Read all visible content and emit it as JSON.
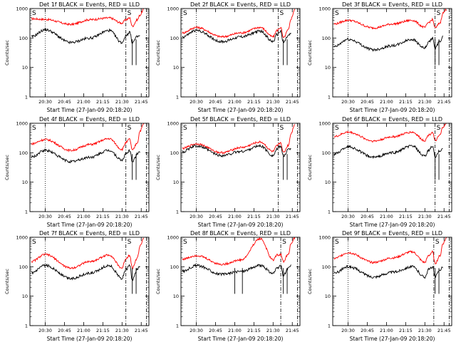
{
  "chart_data": {
    "type": "line",
    "yscale": "log",
    "ylim": [
      1,
      1000
    ],
    "xlim_minutes": [
      "20:18",
      "21:51"
    ],
    "yticks": [
      "1",
      "10",
      "100",
      "1000"
    ],
    "xticks": [
      "20:30",
      "20:45",
      "21:00",
      "21:15",
      "21:30",
      "21:45"
    ],
    "ylabel": "Counts/sec",
    "xlabel": "Start Time (27-Jan-09 20:18:20)",
    "markers": [
      "S",
      "S"
    ],
    "colors": {
      "events": "#000000",
      "lld": "#ff0000"
    },
    "panels": [
      {
        "title": "Det 1f BLACK = Events, RED = LLD",
        "lld": {
          "x": [
            "20:19",
            "20:30",
            "20:50",
            "21:05",
            "21:20",
            "21:30",
            "21:33",
            "21:36",
            "21:38",
            "21:42",
            "21:44",
            "21:47"
          ],
          "y": [
            450,
            430,
            290,
            420,
            480,
            320,
            420,
            480,
            250,
            420,
            600,
            950
          ]
        },
        "events": {
          "x": [
            "20:19",
            "20:30",
            "20:50",
            "21:05",
            "21:20",
            "21:30",
            "21:33",
            "21:36",
            "21:38",
            "21:42",
            "21:44"
          ],
          "y": [
            110,
            190,
            70,
            100,
            180,
            70,
            120,
            160,
            70,
            110,
            120
          ]
        },
        "dips": [
          "21:38",
          "21:41"
        ],
        "dotted": "20:30",
        "dashdot": [
          "21:33",
          "21:49"
        ]
      },
      {
        "title": "Det 2f BLACK = Events, RED = LLD",
        "lld": {
          "x": [
            "20:19",
            "20:30",
            "20:50",
            "21:05",
            "21:20",
            "21:30",
            "21:33",
            "21:36",
            "21:38",
            "21:42",
            "21:44",
            "21:47"
          ],
          "y": [
            150,
            230,
            110,
            150,
            230,
            110,
            180,
            230,
            100,
            190,
            450,
            950
          ]
        },
        "events": {
          "x": [
            "20:19",
            "20:30",
            "20:50",
            "21:05",
            "21:20",
            "21:30",
            "21:33",
            "21:36",
            "21:38",
            "21:42",
            "21:44"
          ],
          "y": [
            110,
            180,
            75,
            110,
            170,
            75,
            130,
            170,
            70,
            120,
            140
          ]
        },
        "dips": [
          "21:38",
          "21:41"
        ],
        "dotted": "20:30",
        "dashdot": [
          "21:34",
          "21:49"
        ]
      },
      {
        "title": "Det 3f BLACK = Events, RED = LLD",
        "lld": {
          "x": [
            "20:19",
            "20:30",
            "20:50",
            "21:05",
            "21:20",
            "21:30",
            "21:33",
            "21:36",
            "21:38",
            "21:42",
            "21:44",
            "21:47"
          ],
          "y": [
            300,
            400,
            220,
            300,
            400,
            230,
            340,
            420,
            220,
            330,
            700,
            950
          ]
        },
        "events": {
          "x": [
            "20:19",
            "20:30",
            "20:50",
            "21:05",
            "21:20",
            "21:30",
            "21:33",
            "21:36",
            "21:38",
            "21:42",
            "21:44"
          ],
          "y": [
            50,
            90,
            40,
            55,
            90,
            45,
            70,
            100,
            45,
            80,
            110
          ]
        },
        "dips": [
          "21:38",
          "21:41"
        ],
        "dotted": "20:30",
        "dashdot": [
          "21:38",
          "21:49"
        ]
      },
      {
        "title": "Det 4f BLACK = Events, RED = LLD",
        "lld": {
          "x": [
            "20:19",
            "20:30",
            "20:50",
            "21:05",
            "21:20",
            "21:30",
            "21:33",
            "21:36",
            "21:38",
            "21:42",
            "21:44",
            "21:47"
          ],
          "y": [
            200,
            280,
            120,
            190,
            300,
            130,
            220,
            290,
            120,
            220,
            550,
            950
          ]
        },
        "events": {
          "x": [
            "20:19",
            "20:30",
            "20:50",
            "21:05",
            "21:20",
            "21:30",
            "21:33",
            "21:36",
            "21:38",
            "21:42",
            "21:44"
          ],
          "y": [
            70,
            120,
            50,
            70,
            120,
            55,
            90,
            120,
            50,
            90,
            110
          ]
        },
        "dips": [
          "21:38",
          "21:41"
        ],
        "dotted": "20:30",
        "dashdot": [
          "21:33",
          "21:49"
        ]
      },
      {
        "title": "Det 5f BLACK = Events, RED = LLD",
        "lld": {
          "x": [
            "20:19",
            "20:30",
            "20:50",
            "21:05",
            "21:20",
            "21:30",
            "21:33",
            "21:36",
            "21:38",
            "21:42",
            "21:44",
            "21:47"
          ],
          "y": [
            140,
            200,
            100,
            150,
            230,
            110,
            170,
            220,
            100,
            180,
            450,
            950
          ]
        },
        "events": {
          "x": [
            "20:19",
            "20:30",
            "20:50",
            "21:05",
            "21:20",
            "21:30",
            "21:33",
            "21:36",
            "21:38",
            "21:42",
            "21:44"
          ],
          "y": [
            110,
            170,
            80,
            110,
            170,
            80,
            130,
            170,
            75,
            130,
            140
          ]
        },
        "dips": [
          "21:38",
          "21:41"
        ],
        "dotted": "20:30",
        "dashdot": [
          "21:34",
          "21:49"
        ]
      },
      {
        "title": "Det 6f BLACK = Events, RED = LLD",
        "lld": {
          "x": [
            "20:19",
            "20:30",
            "20:50",
            "21:05",
            "21:20",
            "21:30",
            "21:33",
            "21:36",
            "21:38",
            "21:42",
            "21:44",
            "21:47"
          ],
          "y": [
            350,
            500,
            250,
            350,
            500,
            260,
            400,
            500,
            250,
            400,
            750,
            950
          ]
        },
        "events": {
          "x": [
            "20:19",
            "20:30",
            "20:50",
            "21:05",
            "21:20",
            "21:30",
            "21:33",
            "21:36",
            "21:38",
            "21:42",
            "21:44"
          ],
          "y": [
            90,
            160,
            70,
            100,
            170,
            75,
            120,
            170,
            70,
            120,
            140
          ]
        },
        "dips": [
          "21:38",
          "21:41"
        ],
        "dotted": "20:30",
        "dashdot": [
          "21:38",
          "21:49"
        ]
      },
      {
        "title": "Det 7f BLACK = Events, RED = LLD",
        "lld": {
          "x": [
            "20:19",
            "20:30",
            "20:50",
            "21:05",
            "21:20",
            "21:30",
            "21:33",
            "21:36",
            "21:38",
            "21:42",
            "21:44",
            "21:47"
          ],
          "y": [
            150,
            260,
            90,
            150,
            250,
            90,
            190,
            250,
            90,
            200,
            500,
            950
          ]
        },
        "events": {
          "x": [
            "20:19",
            "20:30",
            "20:50",
            "21:05",
            "21:20",
            "21:30",
            "21:33",
            "21:36",
            "21:38",
            "21:42",
            "21:44"
          ],
          "y": [
            60,
            110,
            40,
            60,
            110,
            40,
            80,
            110,
            35,
            80,
            100
          ]
        },
        "dips": [
          "21:38",
          "21:41"
        ],
        "dotted": "20:30",
        "dashdot": [
          "21:33",
          "21:49"
        ]
      },
      {
        "title": "Det 8f BLACK = Events, RED = LLD",
        "lld": {
          "x": [
            "20:19",
            "20:30",
            "20:50",
            "21:05",
            "21:20",
            "21:30",
            "21:33",
            "21:36",
            "21:38",
            "21:42",
            "21:44",
            "21:47"
          ],
          "y": [
            180,
            240,
            120,
            170,
            900,
            170,
            250,
            260,
            150,
            280,
            600,
            950
          ]
        },
        "events": {
          "x": [
            "20:19",
            "20:30",
            "20:50",
            "21:05",
            "21:20",
            "21:30",
            "21:33",
            "21:36",
            "21:38",
            "21:42",
            "21:44"
          ],
          "y": [
            70,
            110,
            55,
            70,
            110,
            60,
            85,
            110,
            50,
            90,
            110
          ]
        },
        "dips": [
          "21:00",
          "21:06",
          "21:38",
          "21:41"
        ],
        "dotted": "20:30",
        "dashdot": [
          "21:36",
          "21:49"
        ]
      },
      {
        "title": "Det 9f BLACK = Events, RED = LLD",
        "lld": {
          "x": [
            "20:19",
            "20:30",
            "20:50",
            "21:05",
            "21:20",
            "21:30",
            "21:33",
            "21:36",
            "21:38",
            "21:42",
            "21:44",
            "21:47"
          ],
          "y": [
            190,
            300,
            140,
            200,
            320,
            140,
            240,
            320,
            130,
            240,
            600,
            950
          ]
        },
        "events": {
          "x": [
            "20:19",
            "20:30",
            "20:50",
            "21:05",
            "21:20",
            "21:30",
            "21:33",
            "21:36",
            "21:38",
            "21:42",
            "21:44"
          ],
          "y": [
            60,
            100,
            45,
            65,
            100,
            45,
            80,
            100,
            45,
            80,
            100
          ]
        },
        "dips": [
          "21:38",
          "21:41"
        ],
        "dotted": "20:30",
        "dashdot": [
          "21:37",
          "21:49"
        ]
      }
    ]
  }
}
